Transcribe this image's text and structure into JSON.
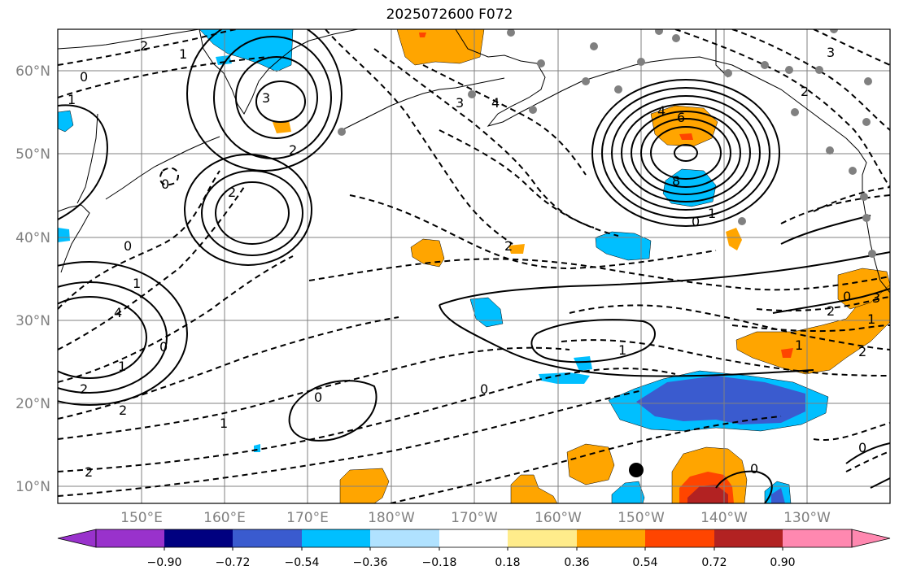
{
  "title": "2025072600 F072",
  "lat_labels": [
    "60°N",
    "50°N",
    "40°N",
    "30°N",
    "20°N",
    "10°N"
  ],
  "lon_labels": [
    "150°E",
    "160°E",
    "170°E",
    "180°W",
    "170°W",
    "160°W",
    "150°W",
    "140°W",
    "130°W"
  ],
  "colorbar": {
    "ticks": [
      "−0.90",
      "−0.72",
      "−0.54",
      "−0.36",
      "−0.18",
      "0.18",
      "0.36",
      "0.54",
      "0.72",
      "0.90"
    ],
    "colors": [
      "#9932cc",
      "#000080",
      "#3a5bcf",
      "#00bfff",
      "#b0e2ff",
      "#ffffff",
      "#ffec8b",
      "#ffa500",
      "#ff4500",
      "#b22222",
      "#ff88b0"
    ]
  },
  "contour_labels": [
    "2",
    "1",
    "0",
    "3",
    "4",
    "6",
    "8",
    "2",
    "1",
    "0",
    "2",
    "3",
    "4",
    "1",
    "2",
    "0",
    "1",
    "2",
    "0",
    "2",
    "1",
    "0",
    "0",
    "1",
    "2",
    "0",
    "1",
    "2",
    "0",
    "1",
    "3",
    "1",
    "0",
    "2",
    "4",
    "0",
    "3",
    "2"
  ]
}
